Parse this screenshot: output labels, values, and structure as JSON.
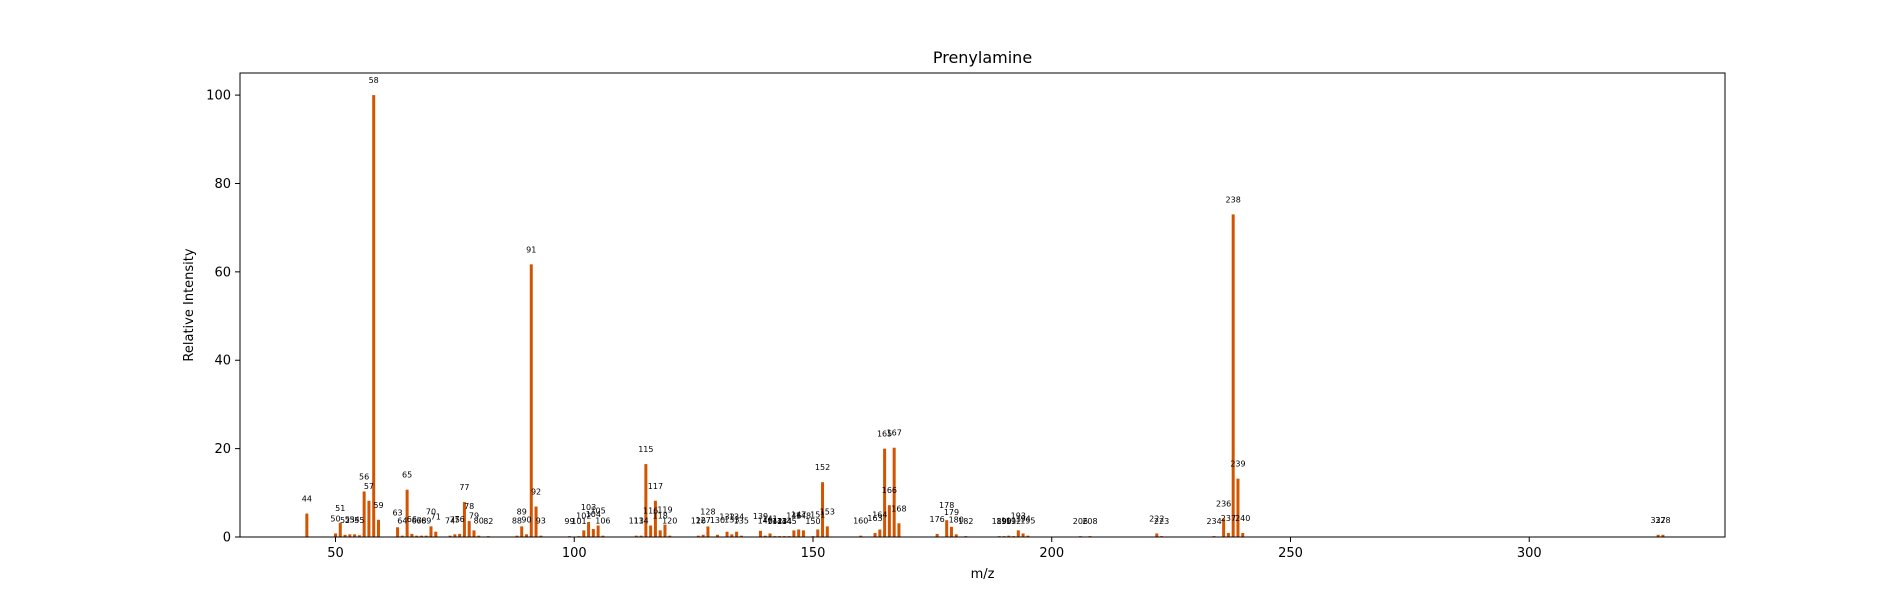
{
  "chart_data": {
    "type": "bar",
    "title": "Prenylamine",
    "xlabel": "m/z",
    "ylabel": "Relative Intensity",
    "xlim": [
      30,
      341
    ],
    "ylim": [
      0,
      105
    ],
    "xticks": [
      50,
      100,
      150,
      200,
      250,
      300
    ],
    "yticks": [
      0,
      20,
      40,
      60,
      80,
      100
    ],
    "grid": false,
    "legend": "none",
    "bar_color": "#d35400",
    "peaks": [
      {
        "mz": 44,
        "intensity": 5.3
      },
      {
        "mz": 50,
        "intensity": 0.8
      },
      {
        "mz": 51,
        "intensity": 3.2
      },
      {
        "mz": 52,
        "intensity": 0.5
      },
      {
        "mz": 53,
        "intensity": 0.6
      },
      {
        "mz": 54,
        "intensity": 0.6
      },
      {
        "mz": 55,
        "intensity": 0.4
      },
      {
        "mz": 56,
        "intensity": 10.3
      },
      {
        "mz": 57,
        "intensity": 8.2
      },
      {
        "mz": 58,
        "intensity": 100
      },
      {
        "mz": 59,
        "intensity": 3.9
      },
      {
        "mz": 63,
        "intensity": 2.2
      },
      {
        "mz": 64,
        "intensity": 0.3
      },
      {
        "mz": 65,
        "intensity": 10.7
      },
      {
        "mz": 66,
        "intensity": 0.7
      },
      {
        "mz": 67,
        "intensity": 0.3
      },
      {
        "mz": 68,
        "intensity": 0.3
      },
      {
        "mz": 69,
        "intensity": 0.3
      },
      {
        "mz": 70,
        "intensity": 2.4
      },
      {
        "mz": 71,
        "intensity": 1.2
      },
      {
        "mz": 74,
        "intensity": 0.3
      },
      {
        "mz": 75,
        "intensity": 0.6
      },
      {
        "mz": 76,
        "intensity": 0.7
      },
      {
        "mz": 77,
        "intensity": 7.9
      },
      {
        "mz": 78,
        "intensity": 3.6
      },
      {
        "mz": 79,
        "intensity": 1.5
      },
      {
        "mz": 80,
        "intensity": 0.3
      },
      {
        "mz": 82,
        "intensity": 0.2
      },
      {
        "mz": 88,
        "intensity": 0.3
      },
      {
        "mz": 89,
        "intensity": 2.4
      },
      {
        "mz": 90,
        "intensity": 0.6
      },
      {
        "mz": 91,
        "intensity": 61.7
      },
      {
        "mz": 92,
        "intensity": 6.9
      },
      {
        "mz": 93,
        "intensity": 0.3
      },
      {
        "mz": 99,
        "intensity": 0.2
      },
      {
        "mz": 101,
        "intensity": 0.2
      },
      {
        "mz": 102,
        "intensity": 1.5
      },
      {
        "mz": 103,
        "intensity": 3.4
      },
      {
        "mz": 104,
        "intensity": 1.8
      },
      {
        "mz": 105,
        "intensity": 2.6
      },
      {
        "mz": 106,
        "intensity": 0.3
      },
      {
        "mz": 113,
        "intensity": 0.3
      },
      {
        "mz": 114,
        "intensity": 0.3
      },
      {
        "mz": 115,
        "intensity": 16.5
      },
      {
        "mz": 116,
        "intensity": 2.6
      },
      {
        "mz": 117,
        "intensity": 8.2
      },
      {
        "mz": 118,
        "intensity": 1.5
      },
      {
        "mz": 119,
        "intensity": 2.8
      },
      {
        "mz": 120,
        "intensity": 0.3
      },
      {
        "mz": 126,
        "intensity": 0.3
      },
      {
        "mz": 127,
        "intensity": 0.5
      },
      {
        "mz": 128,
        "intensity": 2.4
      },
      {
        "mz": 130,
        "intensity": 0.5
      },
      {
        "mz": 132,
        "intensity": 1.2
      },
      {
        "mz": 133,
        "intensity": 0.6
      },
      {
        "mz": 134,
        "intensity": 1.2
      },
      {
        "mz": 135,
        "intensity": 0.3
      },
      {
        "mz": 139,
        "intensity": 1.4
      },
      {
        "mz": 140,
        "intensity": 0.3
      },
      {
        "mz": 141,
        "intensity": 0.8
      },
      {
        "mz": 142,
        "intensity": 0.2
      },
      {
        "mz": 143,
        "intensity": 0.2
      },
      {
        "mz": 144,
        "intensity": 0.2
      },
      {
        "mz": 145,
        "intensity": 0.2
      },
      {
        "mz": 146,
        "intensity": 1.5
      },
      {
        "mz": 147,
        "intensity": 1.7
      },
      {
        "mz": 148,
        "intensity": 1.5
      },
      {
        "mz": 150,
        "intensity": 0.2
      },
      {
        "mz": 151,
        "intensity": 1.7
      },
      {
        "mz": 152,
        "intensity": 12.4
      },
      {
        "mz": 153,
        "intensity": 2.4
      },
      {
        "mz": 160,
        "intensity": 0.3
      },
      {
        "mz": 163,
        "intensity": 0.9
      },
      {
        "mz": 164,
        "intensity": 1.7
      },
      {
        "mz": 165,
        "intensity": 20.0
      },
      {
        "mz": 166,
        "intensity": 7.2
      },
      {
        "mz": 167,
        "intensity": 20.2
      },
      {
        "mz": 168,
        "intensity": 3.1
      },
      {
        "mz": 176,
        "intensity": 0.7
      },
      {
        "mz": 178,
        "intensity": 3.8
      },
      {
        "mz": 179,
        "intensity": 2.3
      },
      {
        "mz": 180,
        "intensity": 0.6
      },
      {
        "mz": 182,
        "intensity": 0.2
      },
      {
        "mz": 189,
        "intensity": 0.2
      },
      {
        "mz": 190,
        "intensity": 0.2
      },
      {
        "mz": 191,
        "intensity": 0.3
      },
      {
        "mz": 192,
        "intensity": 0.2
      },
      {
        "mz": 193,
        "intensity": 1.5
      },
      {
        "mz": 194,
        "intensity": 0.8
      },
      {
        "mz": 195,
        "intensity": 0.3
      },
      {
        "mz": 206,
        "intensity": 0.2
      },
      {
        "mz": 208,
        "intensity": 0.2
      },
      {
        "mz": 222,
        "intensity": 0.8
      },
      {
        "mz": 223,
        "intensity": 0.2
      },
      {
        "mz": 234,
        "intensity": 0.2
      },
      {
        "mz": 236,
        "intensity": 4.2
      },
      {
        "mz": 237,
        "intensity": 0.9
      },
      {
        "mz": 238,
        "intensity": 73.0
      },
      {
        "mz": 239,
        "intensity": 13.2
      },
      {
        "mz": 240,
        "intensity": 0.9
      },
      {
        "mz": 327,
        "intensity": 0.5
      },
      {
        "mz": 328,
        "intensity": 0.5
      }
    ]
  }
}
